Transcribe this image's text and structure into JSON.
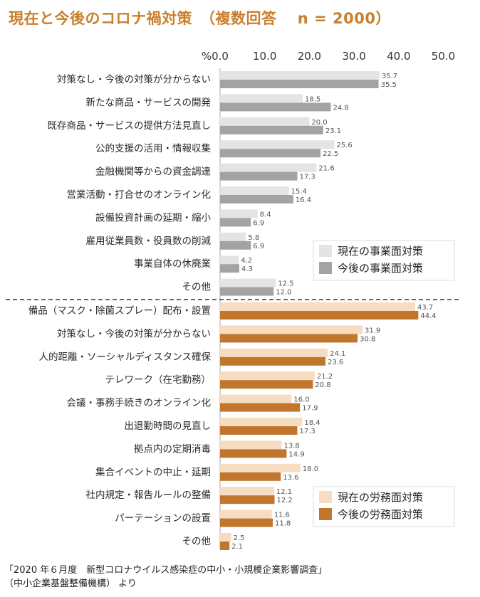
{
  "title": "現在と今後のコロナ禍対策　（複数回答　 n = 2000）",
  "source_lines": [
    "「2020 年６月度　新型コロナウイルス感染症の中小・小規模企業影響調査」",
    "（中小企業基盤整備機構） より"
  ],
  "colors": {
    "title": "#c97f2c",
    "business_current": "#e4e4e4",
    "business_future": "#a3a3a3",
    "labor_current": "#f6dcc0",
    "labor_future": "#c0762c"
  },
  "chart_data": {
    "type": "bar",
    "orientation": "horizontal",
    "axis_unit": "%",
    "xlim": [
      0,
      50
    ],
    "xticks": [
      "0.0",
      "10.0",
      "20.0",
      "30.0",
      "40.0",
      "50.0"
    ],
    "groups": [
      {
        "categories": [
          "対策なし・今後の対策が分からない",
          "新たな商品・サービスの開発",
          "既存商品・サービスの提供方法見直し",
          "公的支援の活用・情報収集",
          "金融機関等からの資金調達",
          "営業活動・打合せのオンライン化",
          "設備投資計画の延期・縮小",
          "雇用従業員数・役員数の削減",
          "事業自体の休廃業",
          "その他"
        ],
        "series": [
          {
            "name": "現在の事業面対策",
            "values": [
              35.7,
              18.5,
              20.0,
              25.6,
              21.6,
              15.4,
              8.4,
              5.8,
              4.2,
              12.5
            ]
          },
          {
            "name": "今後の事業面対策",
            "values": [
              35.5,
              24.8,
              23.1,
              22.5,
              17.3,
              16.4,
              6.9,
              6.9,
              4.3,
              12.0
            ]
          }
        ]
      },
      {
        "categories": [
          "備品（マスク・除菌スプレー）配布・設置",
          "対策なし・今後の対策が分からない",
          "人的距離・ソーシャルディスタンス確保",
          "テレワーク（在宅勤務）",
          "会議・事務手続きのオンライン化",
          "出退勤時間の見直し",
          "拠点内の定期消毒",
          "集合イベントの中止・延期",
          "社内規定・報告ルールの整備",
          "パーテーションの設置",
          "その他"
        ],
        "series": [
          {
            "name": "現在の労務面対策",
            "values": [
              43.7,
              31.9,
              24.1,
              21.2,
              16.0,
              18.4,
              13.8,
              18.0,
              12.1,
              11.6,
              2.5
            ]
          },
          {
            "name": "今後の労務面対策",
            "values": [
              44.4,
              30.8,
              23.6,
              20.8,
              17.9,
              17.3,
              14.9,
              13.6,
              12.2,
              11.8,
              2.1
            ]
          }
        ]
      }
    ]
  }
}
